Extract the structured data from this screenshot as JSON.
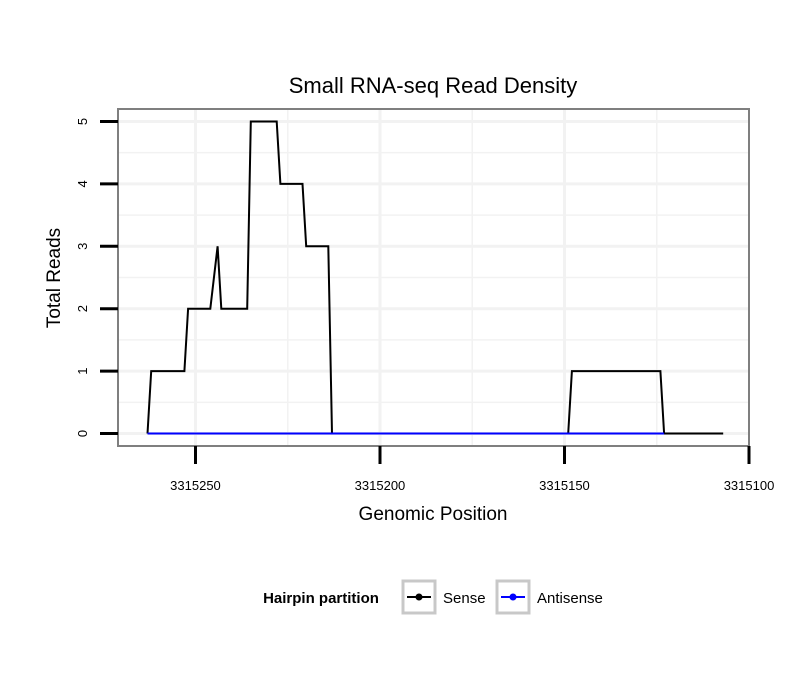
{
  "chart_data": {
    "type": "line",
    "title": "Small RNA-seq Read Density",
    "xlabel": "Genomic Position",
    "ylabel": "Total Reads",
    "x_reversed": true,
    "xlim": [
      3315100,
      3315271
    ],
    "ylim": [
      -0.2,
      5.2
    ],
    "x_ticks": [
      3315250,
      3315200,
      3315150,
      3315100
    ],
    "x_tick_labels": [
      "3315250",
      "3315200",
      "3315150",
      "3315100"
    ],
    "y_ticks": [
      0,
      1,
      2,
      3,
      4,
      5
    ],
    "y_tick_labels": [
      "0",
      "1",
      "2",
      "3",
      "4",
      "5"
    ],
    "grid": true,
    "legend": {
      "title": "Hairpin partition",
      "position": "bottom"
    },
    "series": [
      {
        "name": "Sense",
        "color": "#000000",
        "x": [
          3315263,
          3315262,
          3315253,
          3315252,
          3315246,
          3315244,
          3315243,
          3315242,
          3315236,
          3315235,
          3315228,
          3315227,
          3315221,
          3315220,
          3315214,
          3315213,
          3315149,
          3315148,
          3315124,
          3315123,
          3315107
        ],
        "y": [
          0,
          1,
          1,
          2,
          2,
          3,
          2,
          2,
          2,
          5,
          5,
          4,
          4,
          3,
          3,
          0,
          0,
          1,
          1,
          0,
          0
        ]
      },
      {
        "name": "Antisense",
        "color": "#0000ff",
        "x": [
          3315263,
          3315213,
          3315149,
          3315123
        ],
        "y": [
          0,
          0,
          0,
          0
        ]
      }
    ]
  }
}
